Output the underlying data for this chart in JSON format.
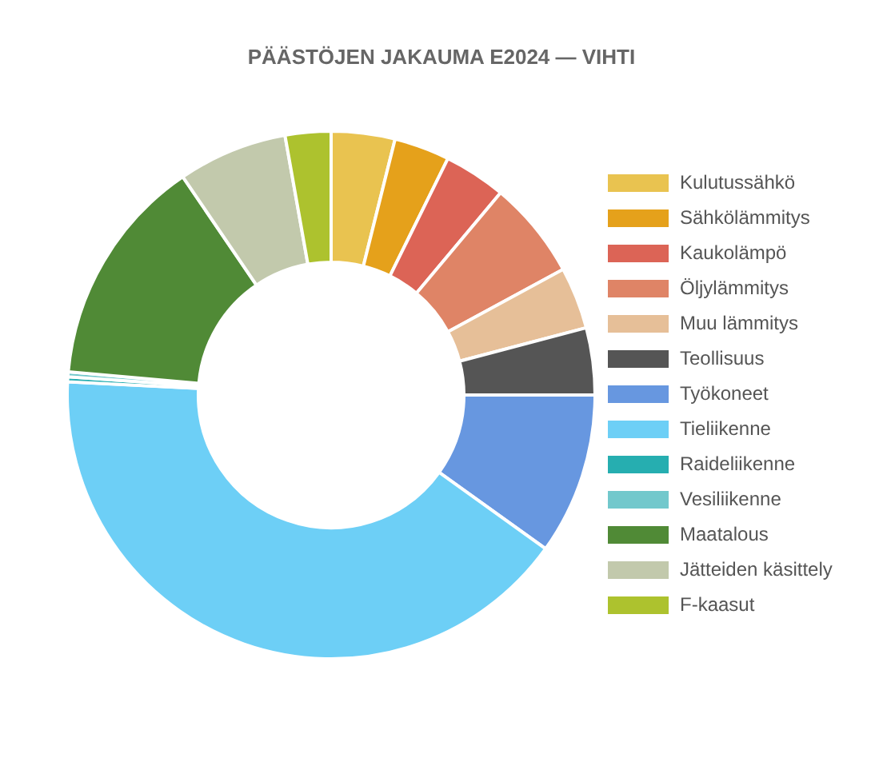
{
  "chart_data": {
    "type": "donut",
    "title": "PÄÄSTÖJEN JAKAUMA E2024 — VIHTI",
    "categories": [
      "Kulutussähkö",
      "Sähkölämmitys",
      "Kaukolämpö",
      "Öljylämmitys",
      "Muu lämmitys",
      "Teollisuus",
      "Työkoneet",
      "Tieliikenne",
      "Raideliikenne",
      "Vesiliikenne",
      "Maatalous",
      "Jätteiden käsittely",
      "F-kaasut"
    ],
    "values": [
      3.9,
      3.4,
      3.8,
      6.0,
      3.8,
      4.1,
      9.9,
      40.9,
      0.3,
      0.3,
      14.1,
      6.7,
      2.8
    ],
    "colors": [
      "#e9c350",
      "#e5a11b",
      "#dc6456",
      "#df8466",
      "#e6bf98",
      "#555555",
      "#6797e0",
      "#6dcff6",
      "#26aeb0",
      "#72c8cc",
      "#508a36",
      "#c2c9ac",
      "#adc22e"
    ],
    "legend": "right"
  }
}
